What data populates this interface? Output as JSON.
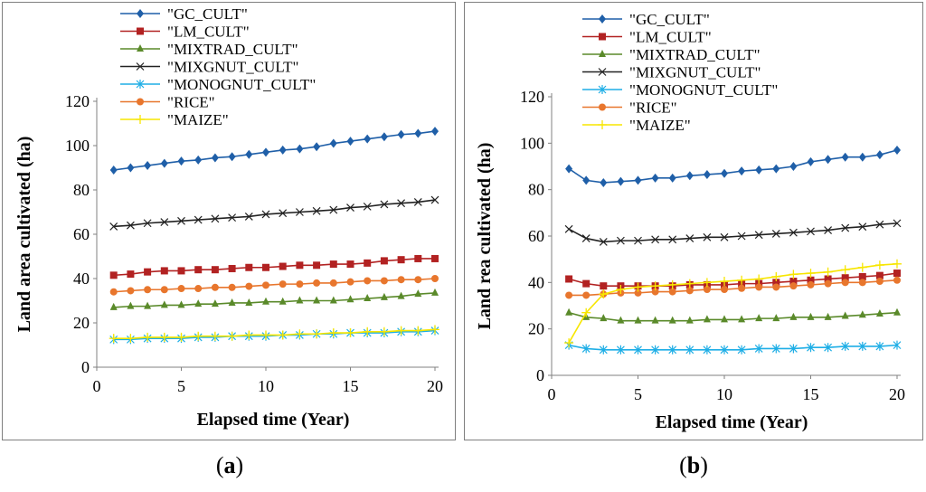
{
  "captions": {
    "a": "a",
    "b": "b"
  },
  "chart_data": [
    {
      "id": "a",
      "type": "line",
      "xlabel": "Elapsed time (Year)",
      "ylabel": "Land area cultivated (ha)",
      "xlim": [
        0,
        20
      ],
      "ylim": [
        0,
        120
      ],
      "xticks": [
        0,
        5,
        10,
        15,
        20
      ],
      "yticks": [
        0,
        20,
        40,
        60,
        80,
        100,
        120
      ],
      "grid": false,
      "legend_position": "top-center",
      "x": [
        1,
        2,
        3,
        4,
        5,
        6,
        7,
        8,
        9,
        10,
        11,
        12,
        13,
        14,
        15,
        16,
        17,
        18,
        19,
        20
      ],
      "series": [
        {
          "name": "\"GC_CULT\"",
          "color": "#1f5fa8",
          "marker": "diamond",
          "values": [
            89,
            90,
            91,
            92,
            93,
            93.5,
            94.5,
            95,
            96,
            97,
            98,
            98.5,
            99.5,
            101,
            102,
            103,
            104,
            105,
            105.5,
            106.5
          ]
        },
        {
          "name": "\"LM_CULT\"",
          "color": "#b22222",
          "marker": "square",
          "values": [
            41.5,
            42,
            43,
            43.5,
            43.5,
            44,
            44,
            44.5,
            45,
            45,
            45.5,
            46,
            46,
            46.5,
            46.5,
            47,
            48,
            48.5,
            49,
            49
          ]
        },
        {
          "name": "\"MIXTRAD_CULT\"",
          "color": "#5a8a2a",
          "marker": "triangle",
          "values": [
            27,
            27.5,
            27.5,
            28,
            28,
            28.5,
            28.5,
            29,
            29,
            29.5,
            29.5,
            30,
            30,
            30,
            30.5,
            31,
            31.5,
            32,
            33,
            33.5
          ]
        },
        {
          "name": "\"MIXGNUT_CULT\"",
          "color": "#222222",
          "marker": "x",
          "values": [
            63.5,
            64,
            65,
            65.5,
            66,
            66.5,
            67,
            67.5,
            68,
            69,
            69.5,
            70,
            70.5,
            71,
            72,
            72.5,
            73.5,
            74,
            74.5,
            75.5
          ]
        },
        {
          "name": "\"MONOGNUT_CULT\"",
          "color": "#1eaee6",
          "marker": "star",
          "values": [
            12.5,
            12.5,
            13,
            13,
            13,
            13.5,
            13.5,
            14,
            14,
            14,
            14.5,
            14.5,
            15,
            15,
            15.5,
            15.5,
            15.5,
            16,
            16,
            16.5
          ]
        },
        {
          "name": "\"RICE\"",
          "color": "#e8762d",
          "marker": "circle",
          "values": [
            34,
            34.5,
            35,
            35,
            35.5,
            35.5,
            36,
            36,
            36.5,
            37,
            37.5,
            37.5,
            38,
            38,
            38.5,
            39,
            39,
            39.5,
            39.5,
            40
          ]
        },
        {
          "name": "\"MAIZE\"",
          "color": "#f7e600",
          "marker": "plus",
          "values": [
            13,
            13,
            13.5,
            13.5,
            13.5,
            14,
            14,
            14,
            14.5,
            14.5,
            14.5,
            15,
            15,
            15.5,
            15.5,
            16,
            16,
            16.5,
            16.5,
            17
          ]
        }
      ]
    },
    {
      "id": "b",
      "type": "line",
      "xlabel": "Elapsed time (Year)",
      "ylabel": "Land rea cultivated (ha)",
      "xlim": [
        0,
        20
      ],
      "ylim": [
        0,
        120
      ],
      "xticks": [
        0,
        5,
        10,
        15,
        20
      ],
      "yticks": [
        0,
        20,
        40,
        60,
        80,
        100,
        120
      ],
      "grid": false,
      "legend_position": "top-center",
      "x": [
        1,
        2,
        3,
        4,
        5,
        6,
        7,
        8,
        9,
        10,
        11,
        12,
        13,
        14,
        15,
        16,
        17,
        18,
        19,
        20
      ],
      "series": [
        {
          "name": "\"GC_CULT\"",
          "color": "#1f5fa8",
          "marker": "diamond",
          "values": [
            89,
            84,
            83,
            83.5,
            84,
            85,
            85,
            86,
            86.5,
            87,
            88,
            88.5,
            89,
            90,
            92,
            93,
            94,
            94,
            95,
            97
          ]
        },
        {
          "name": "\"LM_CULT\"",
          "color": "#b22222",
          "marker": "square",
          "values": [
            41.5,
            39.5,
            38.5,
            38.5,
            38.5,
            38.5,
            38.5,
            39,
            39,
            39,
            39.5,
            39.5,
            40,
            40.5,
            41,
            41.5,
            42,
            42.5,
            43,
            44
          ]
        },
        {
          "name": "\"MIXTRAD_CULT\"",
          "color": "#5a8a2a",
          "marker": "triangle",
          "values": [
            27,
            25,
            24.5,
            23.5,
            23.5,
            23.5,
            23.5,
            23.5,
            24,
            24,
            24,
            24.5,
            24.5,
            25,
            25,
            25,
            25.5,
            26,
            26.5,
            27
          ]
        },
        {
          "name": "\"MIXGNUT_CULT\"",
          "color": "#222222",
          "marker": "x",
          "values": [
            63,
            59,
            57.5,
            58,
            58,
            58.5,
            58.5,
            59,
            59.5,
            59.5,
            60,
            60.5,
            61,
            61.5,
            62,
            62.5,
            63.5,
            64,
            65,
            65.5
          ]
        },
        {
          "name": "\"MONOGNUT_CULT\"",
          "color": "#1eaee6",
          "marker": "star",
          "values": [
            13,
            11.5,
            11,
            11,
            11,
            11,
            11,
            11,
            11,
            11,
            11,
            11.5,
            11.5,
            11.5,
            12,
            12,
            12.5,
            12.5,
            12.5,
            13
          ]
        },
        {
          "name": "\"RICE\"",
          "color": "#e8762d",
          "marker": "circle",
          "values": [
            34.5,
            34.5,
            35,
            35.5,
            35.5,
            36,
            36,
            36.5,
            37,
            37,
            37.5,
            38,
            38,
            38.5,
            39,
            39.5,
            40,
            40,
            40.5,
            41
          ]
        },
        {
          "name": "\"MAIZE\"",
          "color": "#f7e600",
          "marker": "plus",
          "values": [
            14,
            27,
            35,
            37,
            38,
            38.5,
            39,
            39.5,
            40,
            40.5,
            41,
            41.5,
            42.5,
            43.5,
            44,
            44.5,
            45.5,
            46.5,
            47.5,
            48
          ]
        }
      ]
    }
  ]
}
